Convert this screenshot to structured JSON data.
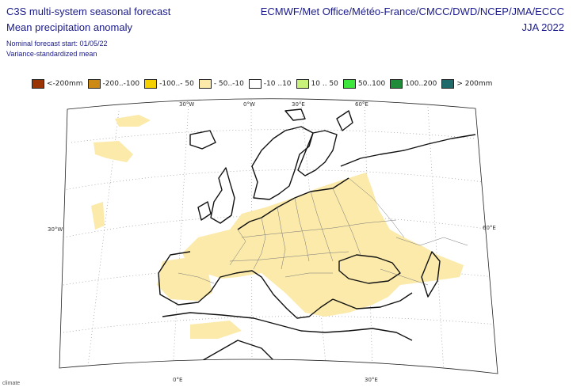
{
  "header": {
    "title_line1": "C3S multi-system seasonal forecast",
    "title_line2": "Mean precipitation anomaly",
    "nominal_start": "Nominal forecast start: 01/05/22",
    "method": "Variance-standardized mean",
    "providers": "ECMWF/Met Office/Météo-France/CMCC/DWD/NCEP/JMA/ECCC",
    "season": "JJA 2022"
  },
  "legend": [
    {
      "label": "<-200mm",
      "color": "#993404"
    },
    {
      "label": "-200..-100",
      "color": "#cc8a14"
    },
    {
      "label": "-100..- 50",
      "color": "#f5d000"
    },
    {
      "label": "- 50..-10",
      "color": "#fbeaaa"
    },
    {
      "label": "-10 ..10",
      "color": "#ffffff"
    },
    {
      "label": "10 .. 50",
      "color": "#c8f27a"
    },
    {
      "label": "50..100",
      "color": "#3ce63c"
    },
    {
      "label": "100..200",
      "color": "#1f8c3a"
    },
    {
      "label": "> 200mm",
      "color": "#1f6a6a"
    }
  ],
  "map": {
    "anomaly_color": "#fbeaaa",
    "coast_color": "#111111",
    "graticule_color": "#999999",
    "labels": {
      "top_30w": "30°W",
      "top_0e": "0°W",
      "top_30e": "30°E",
      "top_60e": "60°E",
      "left_30w": "30°W",
      "right_60e": "60°E",
      "bottom_0e": "0°E",
      "bottom_30e": "30°E"
    }
  },
  "logo_text": "climate"
}
